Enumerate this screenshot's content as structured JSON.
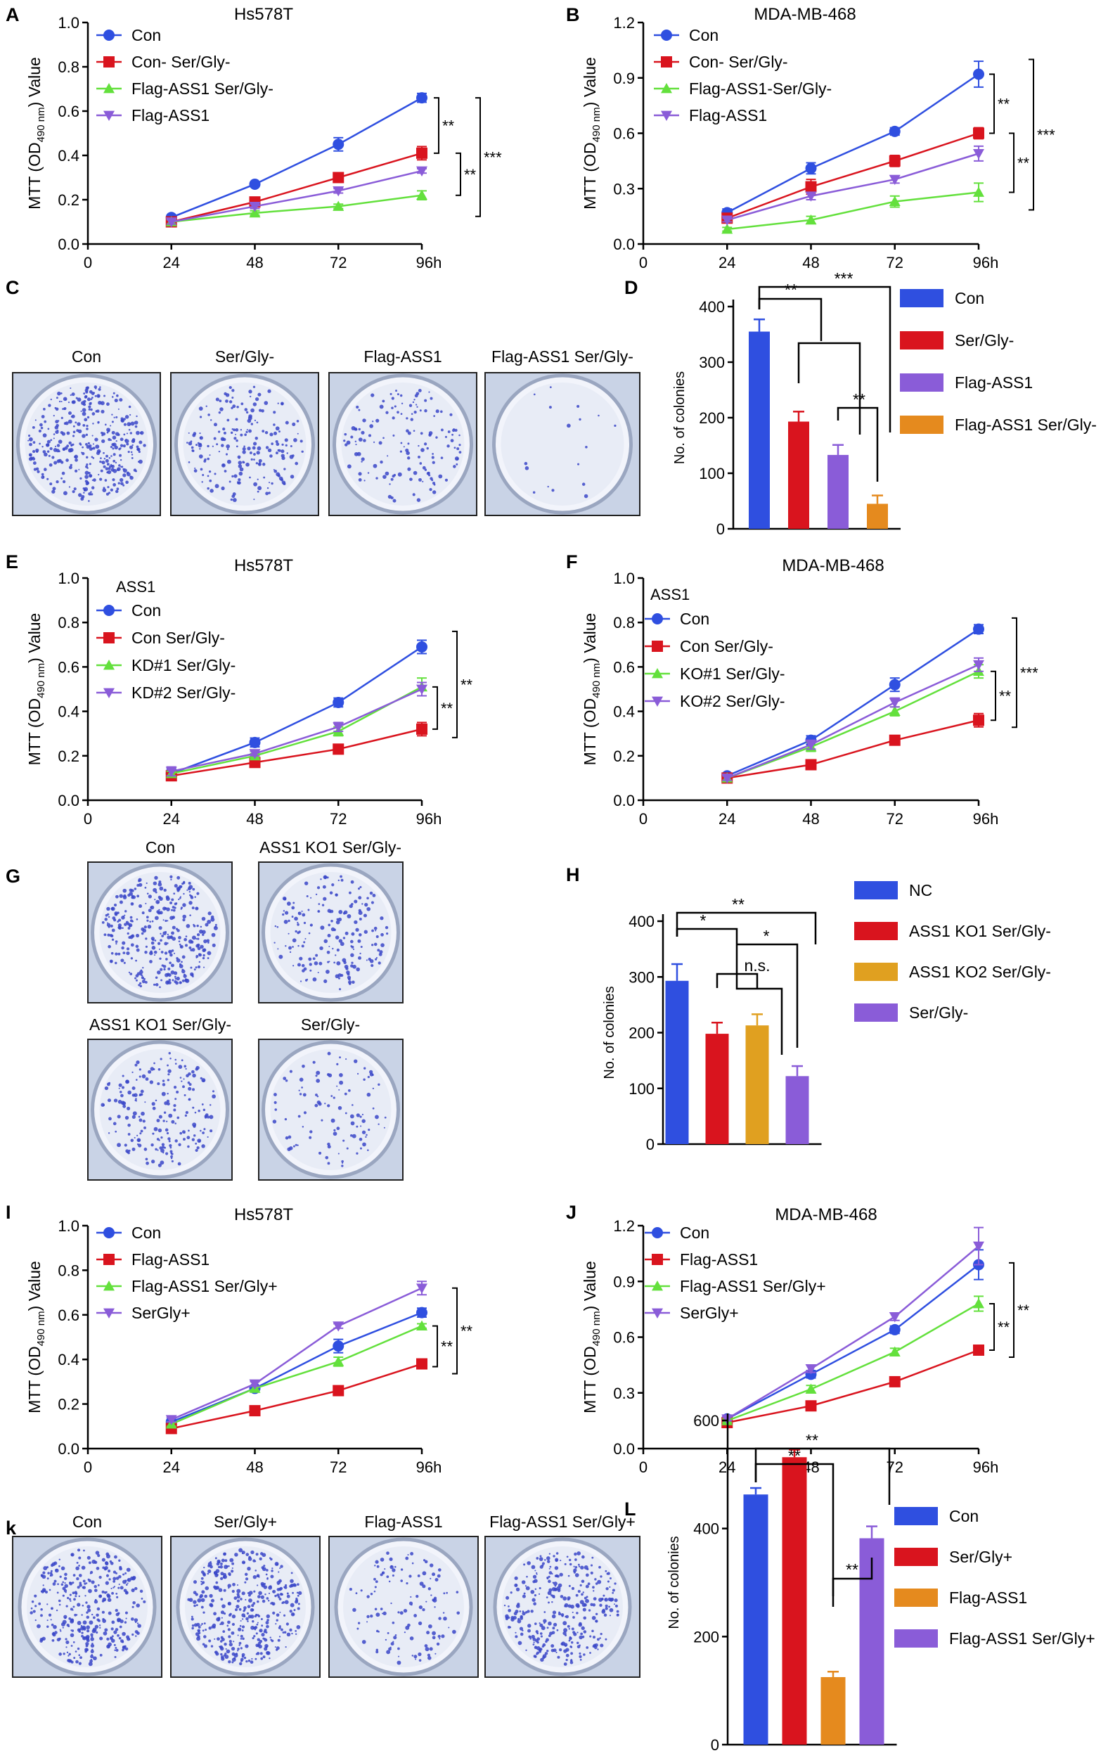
{
  "colors": {
    "blue": "#2f4fe0",
    "red": "#d9141e",
    "green": "#63e03c",
    "purple": "#8a5cd8",
    "orange": "#e58a1e",
    "gold": "#e0a020",
    "dish": "#e8ecf6",
    "colonies": "#3a46c8"
  },
  "axis_label_parts": {
    "main": "MTT (OD",
    "sub": "490 nm",
    "tail": ") Value"
  },
  "panels": {
    "A": {
      "letter": "A",
      "title": "Hs578T"
    },
    "B": {
      "letter": "B",
      "title": "MDA-MB-468"
    },
    "C": {
      "letter": "C",
      "labels": [
        "Con",
        "Ser/Gly-",
        "Flag-ASS1",
        "Flag-ASS1 Ser/Gly-"
      ],
      "densities": [
        0.9,
        0.5,
        0.35,
        0.04
      ]
    },
    "D": {
      "letter": "D"
    },
    "E": {
      "letter": "E",
      "title": "Hs578T",
      "legend_header": "ASS1"
    },
    "F": {
      "letter": "F",
      "title": "MDA-MB-468",
      "legend_header": "ASS1"
    },
    "G": {
      "letter": "G",
      "labels": [
        "Con",
        "ASS1 KO1 Ser/Gly-",
        "ASS1 KO1 Ser/Gly-",
        "Ser/Gly-"
      ],
      "densities": [
        0.85,
        0.45,
        0.5,
        0.25
      ]
    },
    "H": {
      "letter": "H"
    },
    "I": {
      "letter": "I",
      "title": "Hs578T"
    },
    "J": {
      "letter": "J",
      "title": "MDA-MB-468"
    },
    "K": {
      "letter": "k",
      "labels": [
        "Con",
        "Ser/Gly+",
        "Flag-ASS1",
        "Flag-ASS1 Ser/Gly+"
      ],
      "densities": [
        0.85,
        0.95,
        0.3,
        0.8
      ]
    },
    "L": {
      "letter": "L"
    }
  },
  "chart_data": [
    {
      "id": "A",
      "type": "line",
      "title": "Hs578T",
      "x": [
        24,
        48,
        72,
        96
      ],
      "x_tick_labels": [
        "0",
        "24",
        "48",
        "72",
        "96h"
      ],
      "y_tick_labels": [
        "0.0",
        "0.2",
        "0.4",
        "0.6",
        "0.8",
        "1.0"
      ],
      "ylim": [
        0,
        1.0
      ],
      "series": [
        {
          "name": "Con",
          "values": [
            0.12,
            0.27,
            0.45,
            0.66
          ],
          "err": [
            0.01,
            0.01,
            0.03,
            0.02
          ],
          "color": "#2f4fe0",
          "marker": "circle"
        },
        {
          "name": "Con- Ser/Gly-",
          "values": [
            0.1,
            0.19,
            0.3,
            0.41
          ],
          "err": [
            0.01,
            0.01,
            0.02,
            0.03
          ],
          "color": "#d9141e",
          "marker": "square"
        },
        {
          "name": "Flag-ASS1 Ser/Gly-",
          "values": [
            0.1,
            0.14,
            0.17,
            0.22
          ],
          "err": [
            0.01,
            0.01,
            0.01,
            0.02
          ],
          "color": "#63e03c",
          "marker": "triangle-up"
        },
        {
          "name": "Flag-ASS1",
          "values": [
            0.1,
            0.17,
            0.24,
            0.33
          ],
          "err": [
            0.01,
            0.01,
            0.01,
            0.01
          ],
          "color": "#8a5cd8",
          "marker": "triangle-down"
        }
      ],
      "annotations": [
        "**",
        "**",
        "***"
      ]
    },
    {
      "id": "B",
      "type": "line",
      "title": "MDA-MB-468",
      "x": [
        24,
        48,
        72,
        96
      ],
      "x_tick_labels": [
        "0",
        "24",
        "48",
        "72",
        "96h"
      ],
      "y_tick_labels": [
        "0.0",
        "0.3",
        "0.6",
        "0.9",
        "1.2"
      ],
      "ylim": [
        0,
        1.2
      ],
      "series": [
        {
          "name": "Con",
          "values": [
            0.17,
            0.41,
            0.61,
            0.92
          ],
          "err": [
            0.02,
            0.03,
            0.02,
            0.07
          ],
          "color": "#2f4fe0",
          "marker": "circle"
        },
        {
          "name": "Con- Ser/Gly-",
          "values": [
            0.14,
            0.31,
            0.45,
            0.6
          ],
          "err": [
            0.01,
            0.04,
            0.03,
            0.03
          ],
          "color": "#d9141e",
          "marker": "square"
        },
        {
          "name": "Flag-ASS1-Ser/Gly-",
          "values": [
            0.08,
            0.13,
            0.23,
            0.28
          ],
          "err": [
            0.01,
            0.02,
            0.03,
            0.05
          ],
          "color": "#63e03c",
          "marker": "triangle-up"
        },
        {
          "name": "Flag-ASS1",
          "values": [
            0.13,
            0.26,
            0.35,
            0.49
          ],
          "err": [
            0.01,
            0.02,
            0.02,
            0.04
          ],
          "color": "#8a5cd8",
          "marker": "triangle-down"
        }
      ],
      "annotations": [
        "**",
        "**",
        "***"
      ]
    },
    {
      "id": "D",
      "type": "bar",
      "categories": [
        "Con",
        "Ser/Gly-",
        "Flag-ASS1",
        "Flag-ASS1 Ser/Gly-"
      ],
      "values": [
        355,
        193,
        133,
        45
      ],
      "err": [
        22,
        18,
        18,
        15
      ],
      "colors": [
        "#2f4fe0",
        "#d9141e",
        "#8a5cd8",
        "#e58a1e"
      ],
      "ylabel": "No. of colonies",
      "ylim": [
        0,
        400
      ],
      "y_tick_labels": [
        "0",
        "100",
        "200",
        "300",
        "400"
      ],
      "annotations": [
        "**",
        "***",
        "**"
      ]
    },
    {
      "id": "E",
      "type": "line",
      "title": "Hs578T",
      "x": [
        24,
        48,
        72,
        96
      ],
      "x_tick_labels": [
        "0",
        "24",
        "48",
        "72",
        "96h"
      ],
      "y_tick_labels": [
        "0.0",
        "0.2",
        "0.4",
        "0.6",
        "0.8",
        "1.0"
      ],
      "ylim": [
        0,
        1.0
      ],
      "series": [
        {
          "name": "Con",
          "values": [
            0.12,
            0.26,
            0.44,
            0.69
          ],
          "err": [
            0.02,
            0.02,
            0.02,
            0.03
          ],
          "color": "#2f4fe0",
          "marker": "circle"
        },
        {
          "name": "Con Ser/Gly-",
          "values": [
            0.11,
            0.17,
            0.23,
            0.32
          ],
          "err": [
            0.01,
            0.02,
            0.02,
            0.03
          ],
          "color": "#d9141e",
          "marker": "square"
        },
        {
          "name": "KD#1 Ser/Gly-",
          "values": [
            0.12,
            0.2,
            0.31,
            0.51
          ],
          "err": [
            0.01,
            0.01,
            0.02,
            0.04
          ],
          "color": "#63e03c",
          "marker": "triangle-up"
        },
        {
          "name": "KD#2 Ser/Gly-",
          "values": [
            0.13,
            0.21,
            0.33,
            0.5
          ],
          "err": [
            0.02,
            0.01,
            0.02,
            0.03
          ],
          "color": "#8a5cd8",
          "marker": "triangle-down"
        }
      ],
      "annotations": [
        "**",
        "**"
      ]
    },
    {
      "id": "F",
      "type": "line",
      "title": "MDA-MB-468",
      "x": [
        24,
        48,
        72,
        96
      ],
      "x_tick_labels": [
        "0",
        "24",
        "48",
        "72",
        "96h"
      ],
      "y_tick_labels": [
        "0.0",
        "0.2",
        "0.4",
        "0.6",
        "0.8",
        "1.0"
      ],
      "ylim": [
        0,
        1.0
      ],
      "series": [
        {
          "name": "Con",
          "values": [
            0.11,
            0.27,
            0.52,
            0.77
          ],
          "err": [
            0.01,
            0.02,
            0.03,
            0.02
          ],
          "color": "#2f4fe0",
          "marker": "circle"
        },
        {
          "name": "Con Ser/Gly-",
          "values": [
            0.1,
            0.16,
            0.27,
            0.36
          ],
          "err": [
            0.01,
            0.02,
            0.01,
            0.03
          ],
          "color": "#d9141e",
          "marker": "square"
        },
        {
          "name": "KO#1 Ser/Gly-",
          "values": [
            0.1,
            0.24,
            0.4,
            0.58
          ],
          "err": [
            0.01,
            0.02,
            0.02,
            0.03
          ],
          "color": "#63e03c",
          "marker": "triangle-up"
        },
        {
          "name": "KO#2 Ser/Gly-",
          "values": [
            0.1,
            0.25,
            0.44,
            0.61
          ],
          "err": [
            0.01,
            0.02,
            0.02,
            0.03
          ],
          "color": "#8a5cd8",
          "marker": "triangle-down"
        }
      ],
      "annotations": [
        "**",
        "***"
      ]
    },
    {
      "id": "H",
      "type": "bar",
      "categories": [
        "NC",
        "ASS1 KO1 Ser/Gly-",
        "ASS1 KO2 Ser/Gly-",
        "Ser/Gly-"
      ],
      "values": [
        293,
        198,
        213,
        122
      ],
      "err": [
        30,
        20,
        20,
        18
      ],
      "colors": [
        "#2f4fe0",
        "#d9141e",
        "#e0a020",
        "#8a5cd8"
      ],
      "ylabel": "No. of colonies",
      "ylim": [
        0,
        400
      ],
      "y_tick_labels": [
        "0",
        "100",
        "200",
        "300",
        "400"
      ],
      "annotations": [
        "**",
        "*",
        "*",
        "n.s."
      ]
    },
    {
      "id": "I",
      "type": "line",
      "title": "Hs578T",
      "x": [
        24,
        48,
        72,
        96
      ],
      "x_tick_labels": [
        "0",
        "24",
        "48",
        "72",
        "96h"
      ],
      "y_tick_labels": [
        "0.0",
        "0.2",
        "0.4",
        "0.6",
        "0.8",
        "1.0"
      ],
      "ylim": [
        0,
        1.0
      ],
      "series": [
        {
          "name": "Con",
          "values": [
            0.12,
            0.27,
            0.46,
            0.61
          ],
          "err": [
            0.01,
            0.01,
            0.03,
            0.02
          ],
          "color": "#2f4fe0",
          "marker": "circle"
        },
        {
          "name": "Flag-ASS1",
          "values": [
            0.09,
            0.17,
            0.26,
            0.38
          ],
          "err": [
            0.01,
            0.01,
            0.01,
            0.02
          ],
          "color": "#d9141e",
          "marker": "square"
        },
        {
          "name": "Flag-ASS1 Ser/Gly+",
          "values": [
            0.11,
            0.27,
            0.39,
            0.55
          ],
          "err": [
            0.01,
            0.01,
            0.02,
            0.01
          ],
          "color": "#63e03c",
          "marker": "triangle-up"
        },
        {
          "name": "SerGly+",
          "values": [
            0.13,
            0.29,
            0.55,
            0.72
          ],
          "err": [
            0.01,
            0.01,
            0.01,
            0.03
          ],
          "color": "#8a5cd8",
          "marker": "triangle-down"
        }
      ],
      "annotations": [
        "**",
        "**"
      ]
    },
    {
      "id": "J",
      "type": "line",
      "title": "MDA-MB-468",
      "x": [
        24,
        48,
        72,
        96
      ],
      "x_tick_labels": [
        "0",
        "24",
        "48",
        "72",
        "96h"
      ],
      "y_tick_labels": [
        "0.0",
        "0.3",
        "0.6",
        "0.9",
        "1.2"
      ],
      "ylim": [
        0,
        1.2
      ],
      "series": [
        {
          "name": "Con",
          "values": [
            0.16,
            0.4,
            0.64,
            0.99
          ],
          "err": [
            0.01,
            0.02,
            0.02,
            0.08
          ],
          "color": "#2f4fe0",
          "marker": "circle"
        },
        {
          "name": "Flag-ASS1",
          "values": [
            0.14,
            0.23,
            0.36,
            0.53
          ],
          "err": [
            0.01,
            0.01,
            0.02,
            0.02
          ],
          "color": "#d9141e",
          "marker": "square"
        },
        {
          "name": "Flag-ASS1 Ser/Gly+",
          "values": [
            0.15,
            0.32,
            0.52,
            0.78
          ],
          "err": [
            0.01,
            0.02,
            0.02,
            0.04
          ],
          "color": "#63e03c",
          "marker": "triangle-up"
        },
        {
          "name": "SerGly+",
          "values": [
            0.16,
            0.43,
            0.71,
            1.09
          ],
          "err": [
            0.01,
            0.02,
            0.02,
            0.1
          ],
          "color": "#8a5cd8",
          "marker": "triangle-down"
        }
      ],
      "annotations": [
        "**",
        "**"
      ]
    },
    {
      "id": "L",
      "type": "bar",
      "categories": [
        "Con",
        "Ser/Gly+",
        "Flag-ASS1",
        "Flag-ASS1 Ser/Gly+"
      ],
      "values": [
        463,
        532,
        125,
        382
      ],
      "err": [
        12,
        14,
        10,
        22
      ],
      "colors": [
        "#2f4fe0",
        "#d9141e",
        "#e58a1e",
        "#8a5cd8"
      ],
      "ylabel": "No. of colonies",
      "ylim": [
        0,
        600
      ],
      "y_tick_labels": [
        "0",
        "200",
        "400",
        "600"
      ],
      "annotations": [
        "**",
        "**",
        "**"
      ]
    }
  ]
}
